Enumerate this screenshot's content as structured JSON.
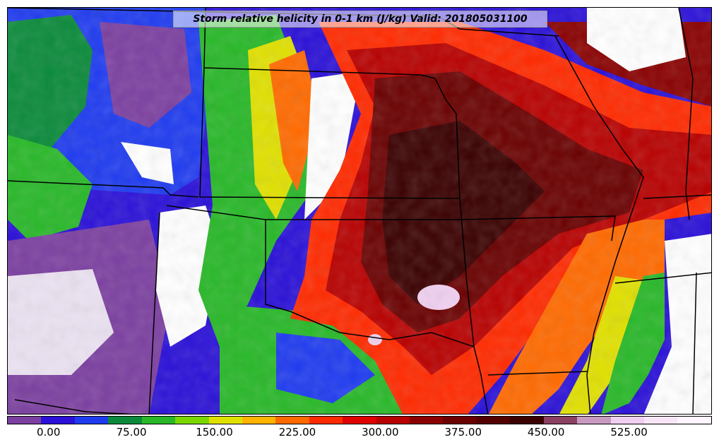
{
  "map": {
    "title": "Storm relative helicity in 0-1 km (J/kg) Valid: 201805031100",
    "field_variable": "Storm relative helicity in 0-1 km",
    "units": "J/kg",
    "valid_time": "201805031100"
  },
  "colorbar": {
    "segments": [
      "#7b3fa0",
      "#2a10d8",
      "#1f3bf0",
      "#0a8a3a",
      "#28b828",
      "#7ad800",
      "#e0e000",
      "#ffb400",
      "#ff6a00",
      "#ff2a00",
      "#e00000",
      "#b80000",
      "#8a0000",
      "#6a0000",
      "#520000",
      "#3a0000",
      "#8a4060",
      "#c89ac0",
      "#f0d0f0",
      "#f8e6f8",
      "#fff4ff"
    ],
    "tick_labels": [
      "0.00",
      "75.00",
      "150.00",
      "225.00",
      "300.00",
      "375.00",
      "450.00",
      "525.00"
    ],
    "tick_values": [
      0,
      75,
      150,
      225,
      300,
      375,
      450,
      525
    ],
    "range": [
      -37.5,
      600
    ]
  },
  "colors": {
    "border": "#000000",
    "background": "#ffffff"
  }
}
